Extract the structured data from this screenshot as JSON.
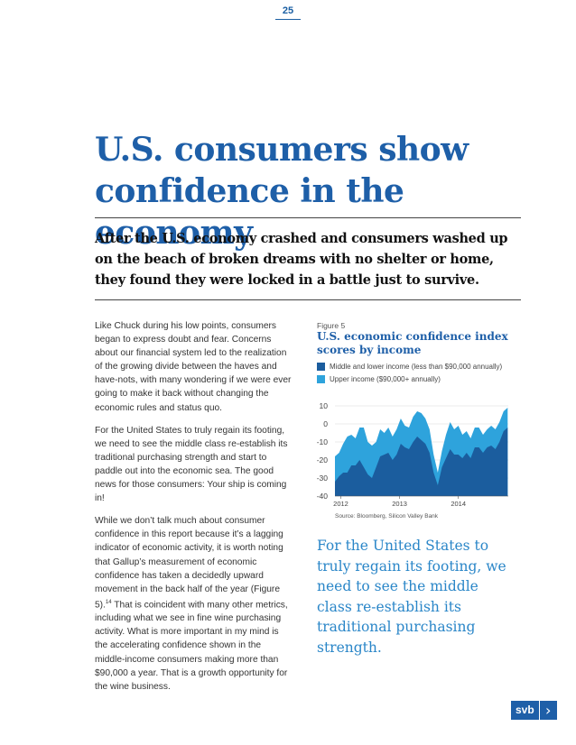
{
  "page_number": "25",
  "headline": "U.S. consumers show confidence in the economy",
  "subhead": "After the U.S. economy crashed and consumers washed up on the beach of broken dreams with no shelter or home, they found they were locked in a battle just to survive.",
  "body": {
    "p1": "Like Chuck during his low points, consumers began to express doubt and fear. Concerns about our financial system led to the realization of the growing divide between the haves and have-nots, with many wondering if we were ever going to make it back without changing the economic rules and status quo.",
    "p2": "For the United States to truly regain its footing, we need to see the middle class re-establish its traditional purchasing strength and start to paddle out into the economic sea. The good news for those consumers: Your ship is coming in!",
    "p3a": "While we don’t talk much about consumer confidence in this report because it’s a lagging indicator of economic activity, it is worth noting that Gallup’s measurement of economic confidence has taken a decidedly upward movement in the back half of the year (Figure 5).",
    "p3_sup": "14",
    "p3b": " That is coincident with many other metrics, including what we see in fine wine purchasing activity. What is more important in my mind is the accelerating confidence shown in the middle-income consumers making more than $90,000 a year. That is a growth opportunity for the wine business."
  },
  "figure": {
    "label": "Figure 5",
    "title": "U.S. economic confidence index scores by income"
  },
  "pullquote": "For the United States to truly regain its footing, we need to see the middle class re-establish its traditional purchasing strength.",
  "logo": {
    "text": "svb",
    "chevron": "›"
  },
  "colors": {
    "brand_blue": "#1e5fa8",
    "light_blue": "#2ea3dc",
    "dark_series": "#1b5d9e"
  },
  "chart_data": {
    "type": "area",
    "legend": [
      "Middle and lower income (less than $90,000 annually)",
      "Upper income ($90,000+ annually)"
    ],
    "y_ticks": [
      "10",
      "0",
      "-10",
      "-20",
      "-30",
      "-40"
    ],
    "ylim": [
      -40,
      10
    ],
    "x_ticks": [
      {
        "label": "2012",
        "x": 2012.0
      },
      {
        "label": "2013",
        "x": 2013.0
      },
      {
        "label": "2014",
        "x": 2014.0
      }
    ],
    "xlim": [
      2011.9,
      2014.85
    ],
    "source": "Source: Bloomberg, Silicon Valley Bank",
    "series": [
      {
        "name": "Upper income ($90,000+ annually)",
        "x": [
          2011.9,
          2011.97,
          2012.04,
          2012.11,
          2012.18,
          2012.25,
          2012.32,
          2012.39,
          2012.46,
          2012.53,
          2012.6,
          2012.67,
          2012.74,
          2012.81,
          2012.88,
          2012.95,
          2013.02,
          2013.09,
          2013.16,
          2013.23,
          2013.3,
          2013.37,
          2013.44,
          2013.51,
          2013.58,
          2013.65,
          2013.72,
          2013.79,
          2013.86,
          2013.93,
          2014.0,
          2014.07,
          2014.14,
          2014.21,
          2014.28,
          2014.35,
          2014.42,
          2014.49,
          2014.56,
          2014.63,
          2014.7,
          2014.77,
          2014.84
        ],
        "values": [
          -18,
          -16,
          -11,
          -7,
          -6,
          -8,
          -2,
          -2,
          -10,
          -12,
          -10,
          -3,
          -5,
          -2,
          -7,
          -3,
          3,
          -1,
          -2,
          4,
          7,
          6,
          3,
          -3,
          -17,
          -27,
          -15,
          -6,
          1,
          -3,
          -1,
          -6,
          -4,
          -8,
          -2,
          -2,
          -6,
          -3,
          -1,
          -3,
          1,
          7,
          9
        ]
      },
      {
        "name": "Middle and lower income (less than $90,000 annually)",
        "x": [
          2011.9,
          2011.97,
          2012.04,
          2012.11,
          2012.18,
          2012.25,
          2012.32,
          2012.39,
          2012.46,
          2012.53,
          2012.6,
          2012.67,
          2012.74,
          2012.81,
          2012.88,
          2012.95,
          2013.02,
          2013.09,
          2013.16,
          2013.23,
          2013.3,
          2013.37,
          2013.44,
          2013.51,
          2013.58,
          2013.65,
          2013.72,
          2013.79,
          2013.86,
          2013.93,
          2014.0,
          2014.07,
          2014.14,
          2014.21,
          2014.28,
          2014.35,
          2014.42,
          2014.49,
          2014.56,
          2014.63,
          2014.7,
          2014.77,
          2014.84
        ],
        "values": [
          -32,
          -29,
          -27,
          -27,
          -23,
          -23,
          -20,
          -24,
          -28,
          -30,
          -24,
          -18,
          -17,
          -16,
          -20,
          -17,
          -11,
          -13,
          -14,
          -10,
          -7,
          -9,
          -11,
          -16,
          -27,
          -34,
          -24,
          -19,
          -14,
          -17,
          -17,
          -19,
          -16,
          -19,
          -13,
          -13,
          -16,
          -13,
          -12,
          -14,
          -10,
          -4,
          -2
        ]
      }
    ]
  }
}
